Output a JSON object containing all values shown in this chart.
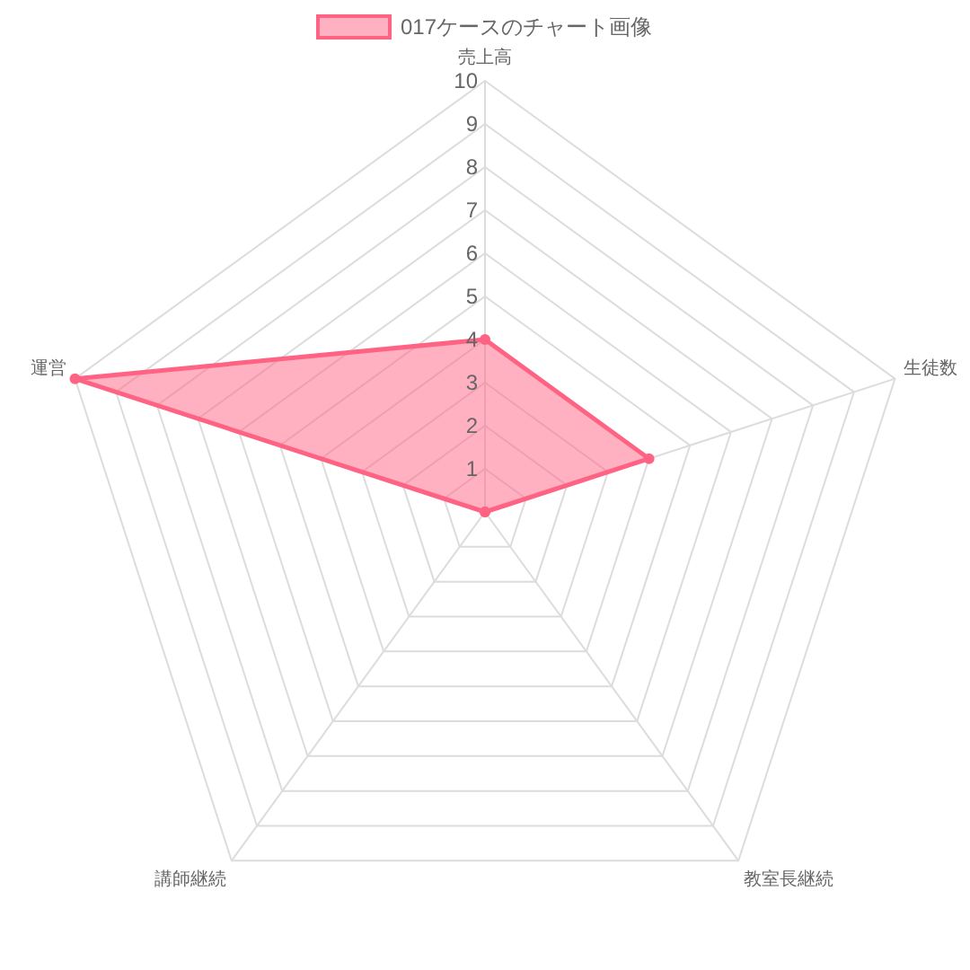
{
  "chart_data": {
    "type": "radar",
    "categories": [
      "売上高",
      "生徒数",
      "教室長継続",
      "講師継続",
      "運営"
    ],
    "series": [
      {
        "name": "017ケースのチャート画像",
        "color": "#ff6384",
        "values": [
          4,
          4,
          0,
          0,
          10
        ]
      }
    ],
    "ylim": [
      0,
      10
    ],
    "yticks": [
      1,
      2,
      3,
      4,
      5,
      6,
      7,
      8,
      9,
      10
    ],
    "grid": true,
    "legend": "top",
    "marker": "circle"
  }
}
